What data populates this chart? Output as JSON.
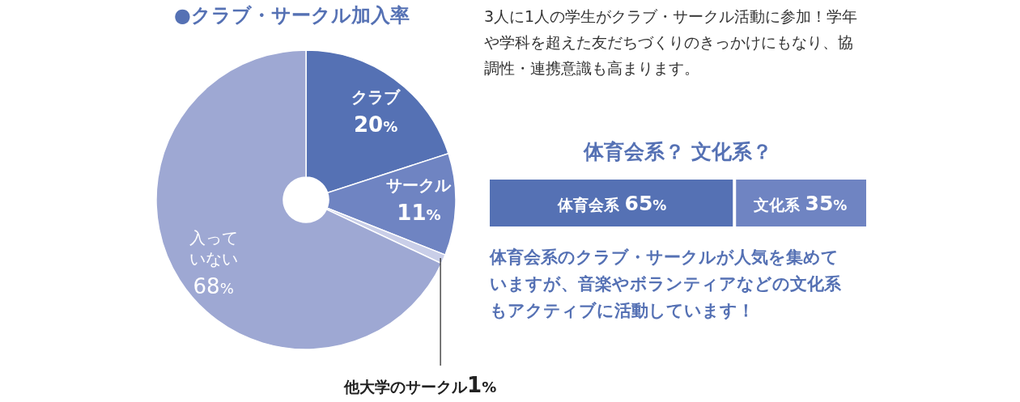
{
  "chart_data": [
    {
      "type": "donut",
      "title": "●クラブ・サークル加入率",
      "categories": [
        "クラブ",
        "サークル",
        "他大学のサークル",
        "入っていない"
      ],
      "values": [
        20,
        11,
        1,
        68
      ],
      "colors": [
        "#5571b4",
        "#6f84c2",
        "#c9cee8",
        "#9ea8d3"
      ],
      "value_labels": [
        "20%",
        "11%",
        "1%",
        "68%"
      ],
      "annotations": [
        "3人に1人の学生がクラブ・サークル活動に参加！学年や学科を超えた友だちづくりのきっかけにもなり、協調性・連携意識も高まります。"
      ]
    },
    {
      "type": "bar",
      "orientation": "horizontal",
      "stacked": true,
      "title": "体育会系？ 文化系？",
      "categories": [
        null
      ],
      "xlim": [
        0,
        100
      ],
      "tick_labels": false,
      "series": [
        {
          "name": "体育会系",
          "color": "#5571b4",
          "values": [
            65
          ],
          "value_labels": [
            "65%"
          ]
        },
        {
          "name": "文化系",
          "color": "#6f84c2",
          "values": [
            35
          ],
          "value_labels": [
            "35%"
          ]
        }
      ],
      "annotations": [
        "体育会系のクラブ・サークルが人気を集めていますが、音楽やボランティアなどの文化系もアクティブに活動しています！"
      ]
    }
  ]
}
